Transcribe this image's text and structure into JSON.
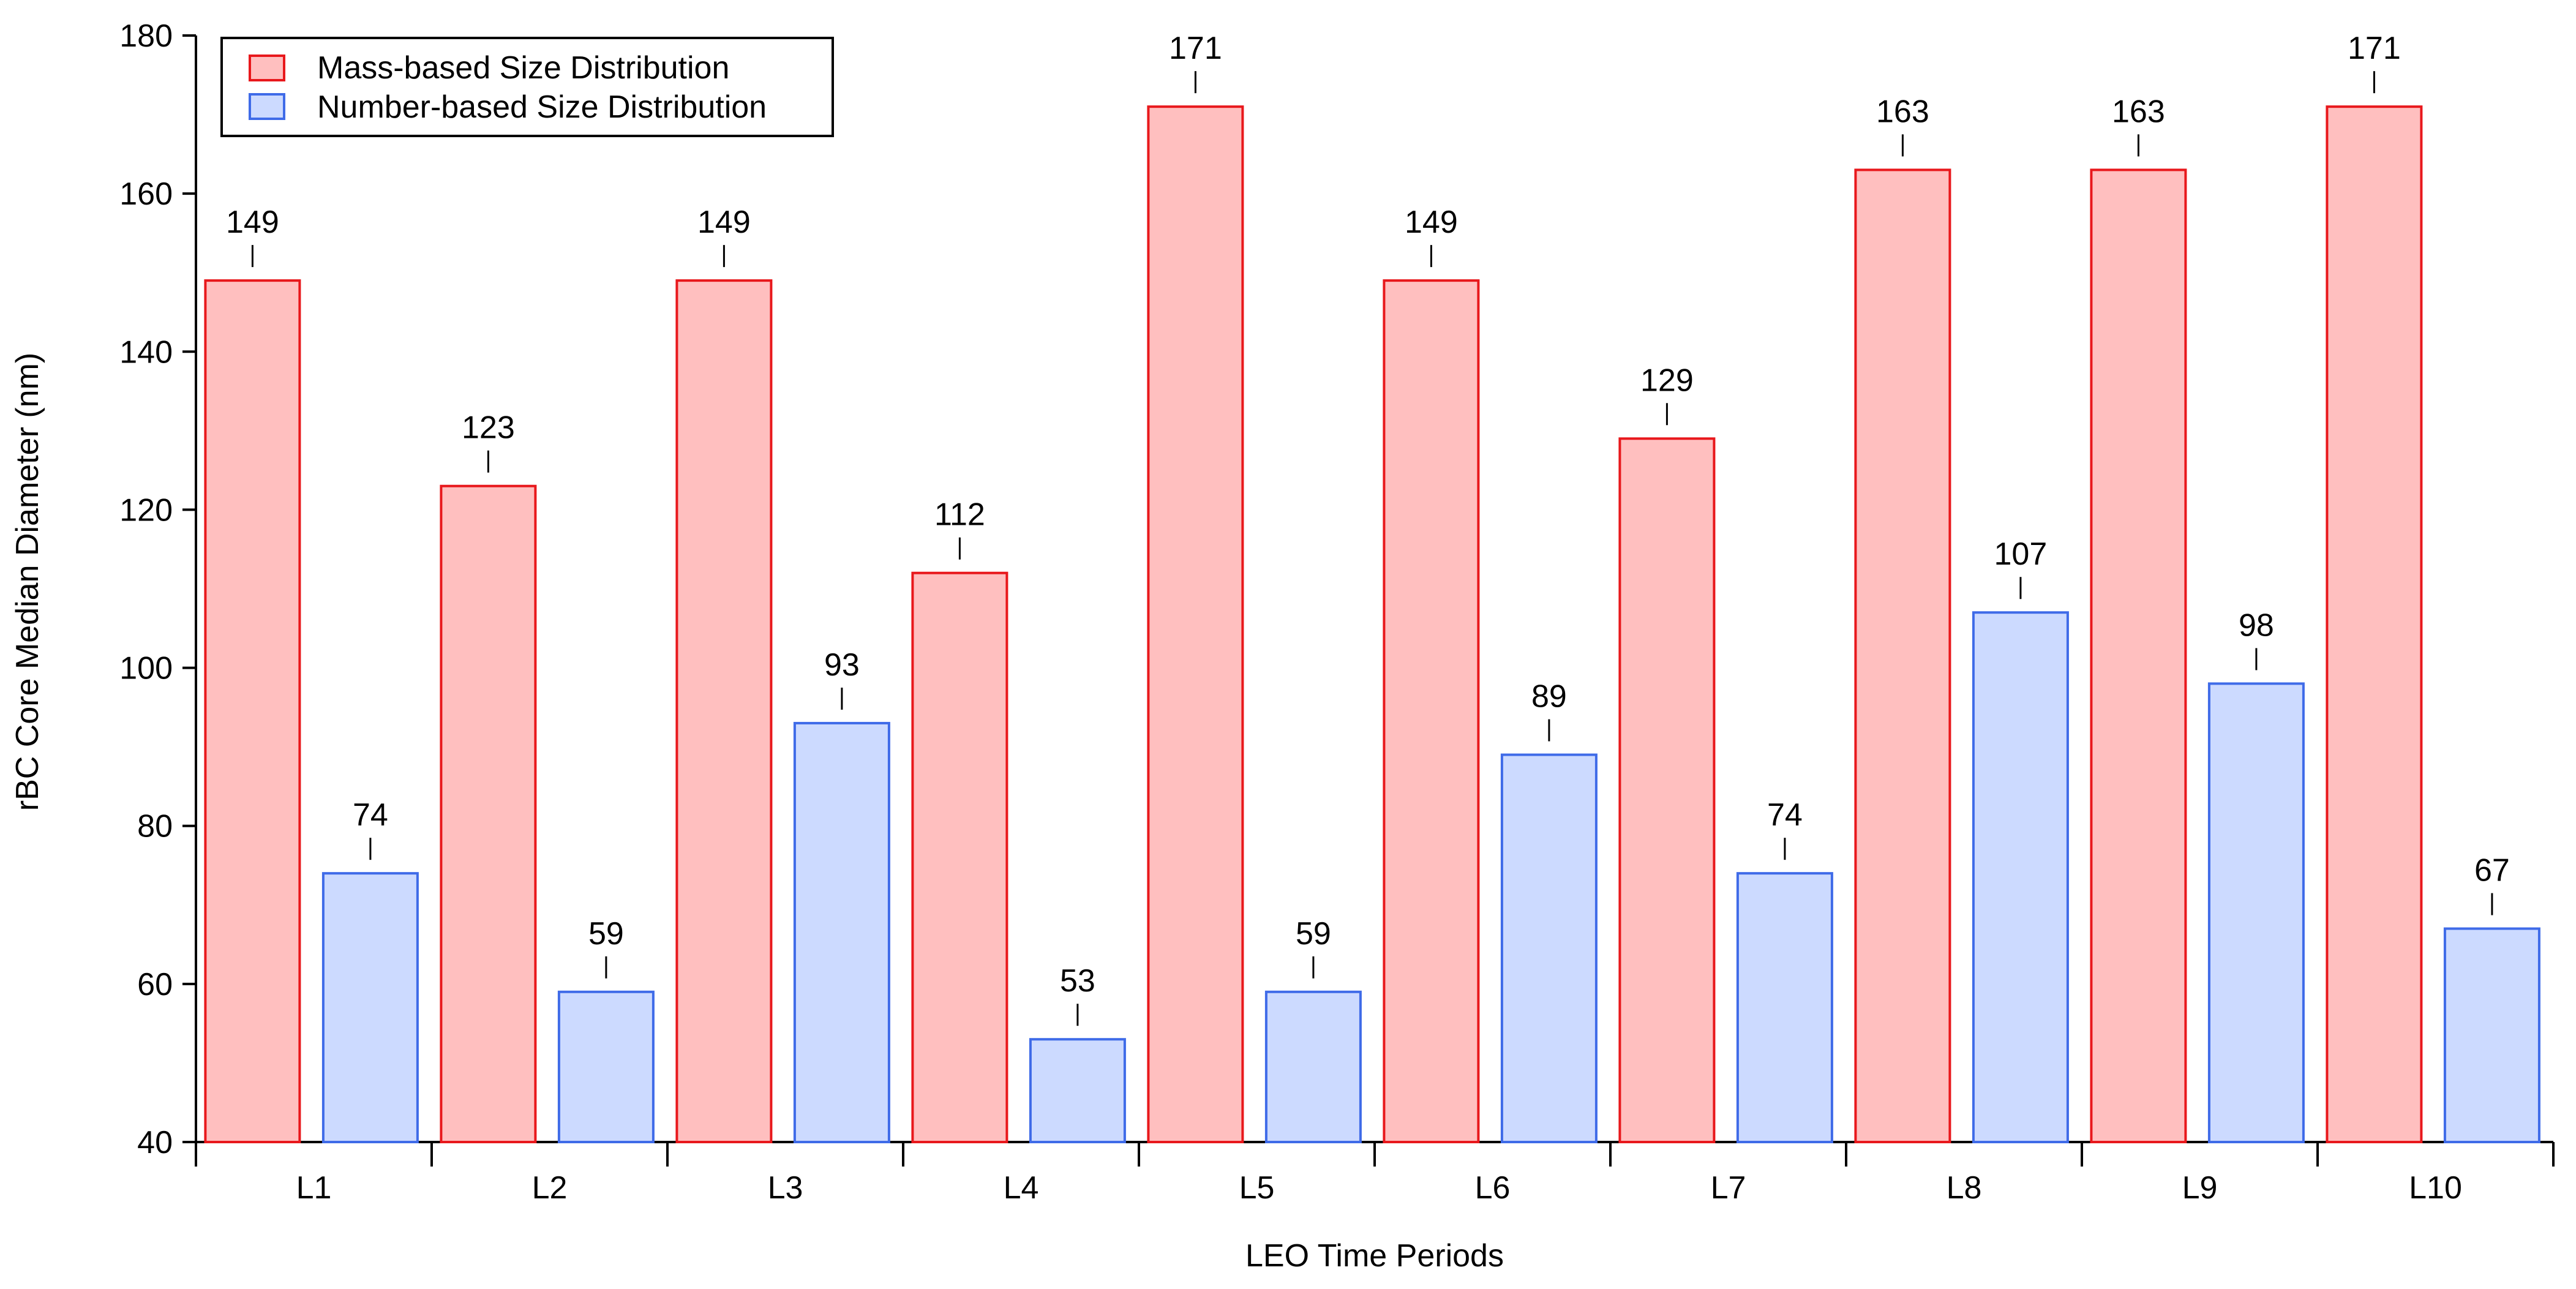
{
  "chart_data": {
    "type": "bar",
    "title": "",
    "xlabel": "LEO Time Periods",
    "ylabel": "rBC Core Median Diameter (nm)",
    "ylim": [
      40,
      180
    ],
    "yticks": [
      40,
      60,
      80,
      100,
      120,
      140,
      160,
      180
    ],
    "categories": [
      "L1",
      "L2",
      "L3",
      "L4",
      "L5",
      "L6",
      "L7",
      "L8",
      "L9",
      "L10"
    ],
    "series": [
      {
        "name": "Mass-based Size Distribution",
        "fill": "#ffbfbf",
        "stroke": "#e8181c",
        "values": [
          149,
          123,
          149,
          112,
          171,
          149,
          129,
          163,
          163,
          171
        ]
      },
      {
        "name": "Number-based Size Distribution",
        "fill": "#ccdaff",
        "stroke": "#3f6be8",
        "values": [
          74,
          59,
          93,
          53,
          59,
          89,
          74,
          107,
          98,
          67
        ]
      }
    ],
    "legend_position": "top-left",
    "grid": false,
    "data_labels": true
  }
}
